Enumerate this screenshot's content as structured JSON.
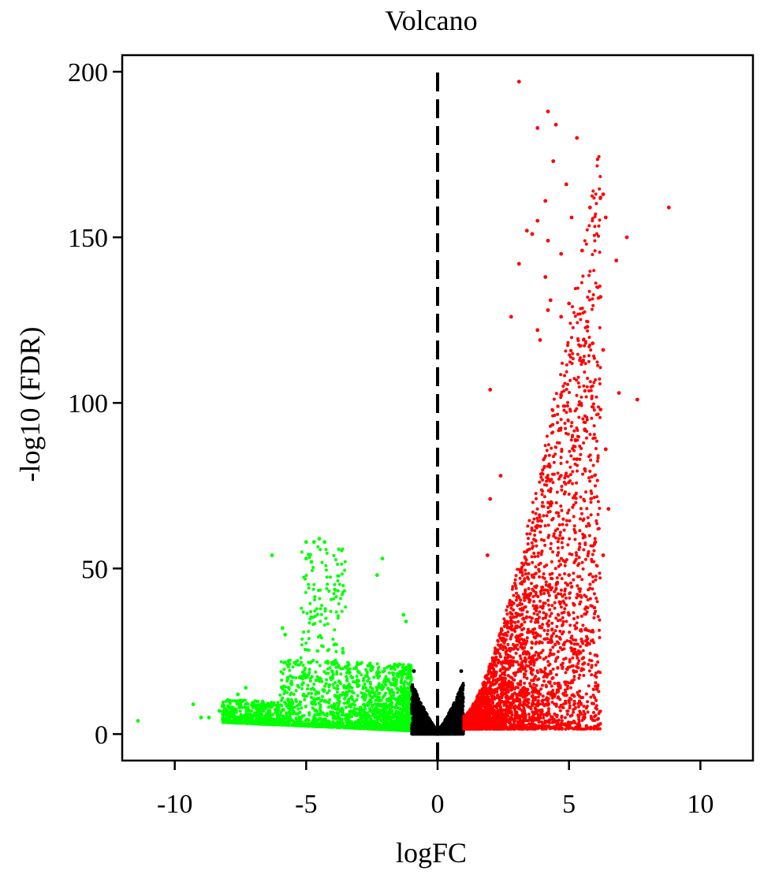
{
  "chart_data": {
    "type": "scatter",
    "title": "Volcano",
    "xlabel": "logFC",
    "ylabel": "-log10 (FDR)",
    "xlim": [
      -12,
      12
    ],
    "ylim": [
      -8,
      205
    ],
    "xticks": [
      -10,
      -5,
      0,
      5,
      10
    ],
    "xtick_labels": [
      "-10",
      "-5",
      "0",
      "5",
      "10"
    ],
    "yticks": [
      0,
      50,
      100,
      150,
      200
    ],
    "ytick_labels": [
      "0",
      "50",
      "100",
      "150",
      "200"
    ],
    "reference_line": {
      "x": 0,
      "style": "dashed",
      "color": "#000000"
    },
    "fc_threshold": 1,
    "grid": false,
    "colors": {
      "down": "#00ff00",
      "ns": "#000000",
      "up": "#ff0000"
    },
    "series": [
      {
        "color": "#00ff00",
        "approx_count": 2600,
        "points": [
          [
            -11.4,
            4
          ],
          [
            -9.3,
            9
          ],
          [
            -9.0,
            5
          ],
          [
            -8.7,
            5
          ],
          [
            -8.3,
            7
          ],
          [
            -7.6,
            12
          ],
          [
            -7.3,
            14
          ],
          [
            -6.3,
            54
          ],
          [
            -5.0,
            58
          ],
          [
            -4.7,
            58
          ],
          [
            -4.5,
            59
          ],
          [
            -4.3,
            58
          ],
          [
            -5.0,
            53
          ],
          [
            -4.8,
            52
          ],
          [
            -5.8,
            30
          ],
          [
            -5.9,
            32
          ],
          [
            -2.1,
            53
          ],
          [
            -2.3,
            48
          ],
          [
            -1.3,
            36
          ],
          [
            -1.2,
            34
          ]
        ]
      },
      {
        "color": "#000000",
        "approx_count": 3200,
        "points": [
          [
            0,
            0
          ],
          [
            -0.9,
            19
          ],
          [
            0.9,
            19
          ]
        ]
      },
      {
        "color": "#ff0000",
        "approx_count": 3400,
        "points": [
          [
            3.1,
            197
          ],
          [
            4.2,
            188
          ],
          [
            4.5,
            184
          ],
          [
            3.8,
            183
          ],
          [
            5.3,
            180
          ],
          [
            4.4,
            173
          ],
          [
            4.9,
            166
          ],
          [
            6.3,
            163
          ],
          [
            6.2,
            162
          ],
          [
            4.1,
            161
          ],
          [
            5.8,
            159
          ],
          [
            8.8,
            159
          ],
          [
            5.1,
            156
          ],
          [
            6.4,
            156
          ],
          [
            3.8,
            155
          ],
          [
            3.4,
            152
          ],
          [
            3.6,
            151
          ],
          [
            7.2,
            150
          ],
          [
            4.2,
            149
          ],
          [
            4.7,
            145
          ],
          [
            5.5,
            146
          ],
          [
            6.8,
            143
          ],
          [
            3.1,
            142
          ],
          [
            4.1,
            138
          ],
          [
            6.2,
            132
          ],
          [
            4.3,
            131
          ],
          [
            5.0,
            130
          ],
          [
            4.2,
            128
          ],
          [
            2.8,
            126
          ],
          [
            4.7,
            126
          ],
          [
            3.8,
            122
          ],
          [
            3.9,
            119
          ],
          [
            5.7,
            123
          ],
          [
            5.9,
            118
          ],
          [
            6.3,
            116
          ],
          [
            2.0,
            104
          ],
          [
            6.9,
            103
          ],
          [
            7.6,
            101
          ],
          [
            6.2,
            98
          ],
          [
            5.6,
            92
          ],
          [
            6.4,
            86
          ],
          [
            5.3,
            83
          ],
          [
            5.6,
            80
          ],
          [
            2.4,
            78
          ],
          [
            2.0,
            71
          ],
          [
            6.5,
            68
          ],
          [
            6.0,
            58
          ],
          [
            6.3,
            54
          ],
          [
            1.9,
            54
          ],
          [
            5.0,
            48
          ],
          [
            5.2,
            39
          ],
          [
            5.0,
            36
          ],
          [
            5.5,
            28
          ],
          [
            4.8,
            27
          ],
          [
            3.2,
            33
          ]
        ]
      }
    ]
  }
}
